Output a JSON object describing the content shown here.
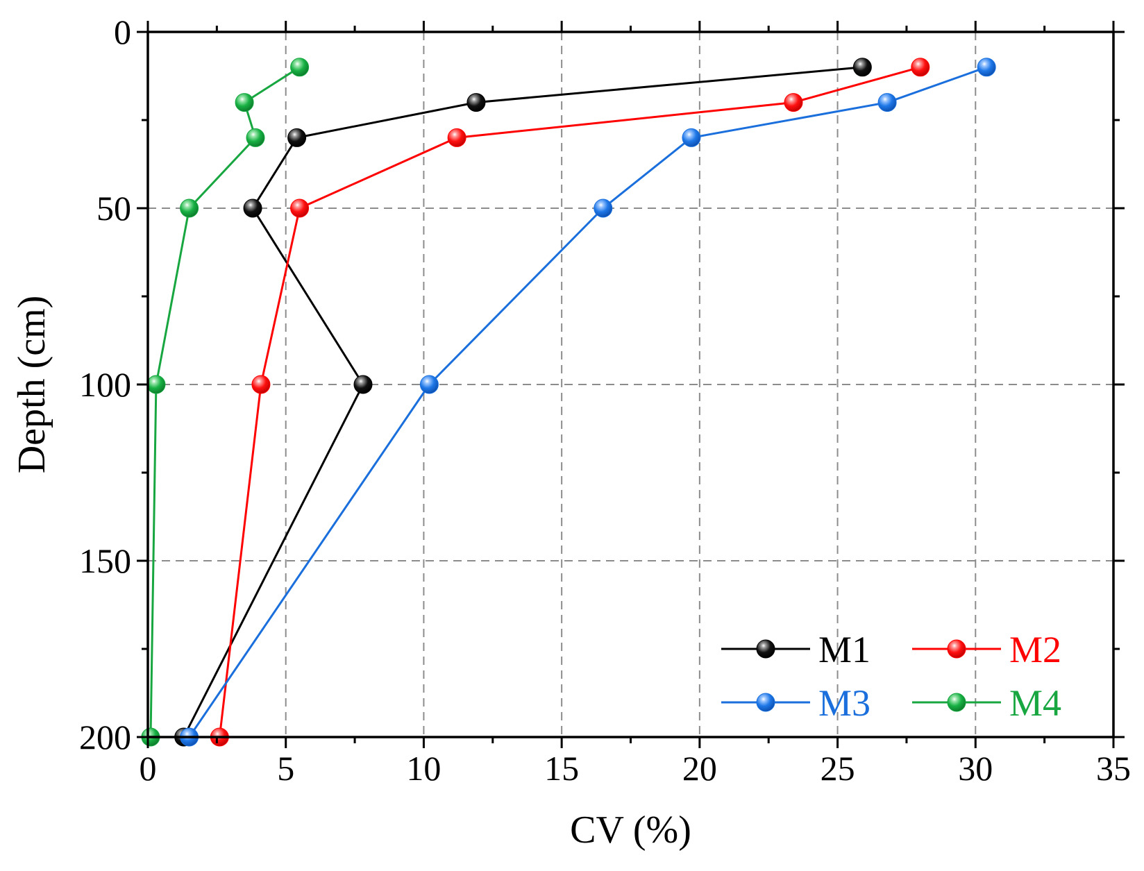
{
  "chart_data": {
    "type": "line",
    "title": "",
    "xlabel": "CV (%)",
    "ylabel": "Depth (cm)",
    "xlim": [
      0,
      35
    ],
    "ylim": [
      0,
      200
    ],
    "y_inverted": true,
    "x_ticks": [
      0,
      5,
      10,
      15,
      20,
      25,
      30,
      35
    ],
    "y_ticks": [
      0,
      50,
      100,
      150,
      200
    ],
    "grid": true,
    "legend_position": "bottom-right",
    "series": [
      {
        "name": "M1",
        "color": "#000000",
        "points": [
          [
            25.9,
            10
          ],
          [
            11.9,
            20
          ],
          [
            5.4,
            30
          ],
          [
            3.8,
            50
          ],
          [
            7.8,
            100
          ],
          [
            1.3,
            200
          ]
        ]
      },
      {
        "name": "M2",
        "color": "#ff0000",
        "points": [
          [
            28.0,
            10
          ],
          [
            23.4,
            20
          ],
          [
            11.2,
            30
          ],
          [
            5.5,
            50
          ],
          [
            4.1,
            100
          ],
          [
            2.6,
            200
          ]
        ]
      },
      {
        "name": "M3",
        "color": "#1a6fdc",
        "points": [
          [
            30.4,
            10
          ],
          [
            26.8,
            20
          ],
          [
            19.7,
            30
          ],
          [
            16.5,
            50
          ],
          [
            10.2,
            100
          ],
          [
            1.5,
            200
          ]
        ]
      },
      {
        "name": "M4",
        "color": "#17a640",
        "points": [
          [
            5.5,
            10
          ],
          [
            3.5,
            20
          ],
          [
            3.9,
            30
          ],
          [
            1.5,
            50
          ],
          [
            0.3,
            100
          ],
          [
            0.1,
            200
          ]
        ]
      }
    ]
  }
}
